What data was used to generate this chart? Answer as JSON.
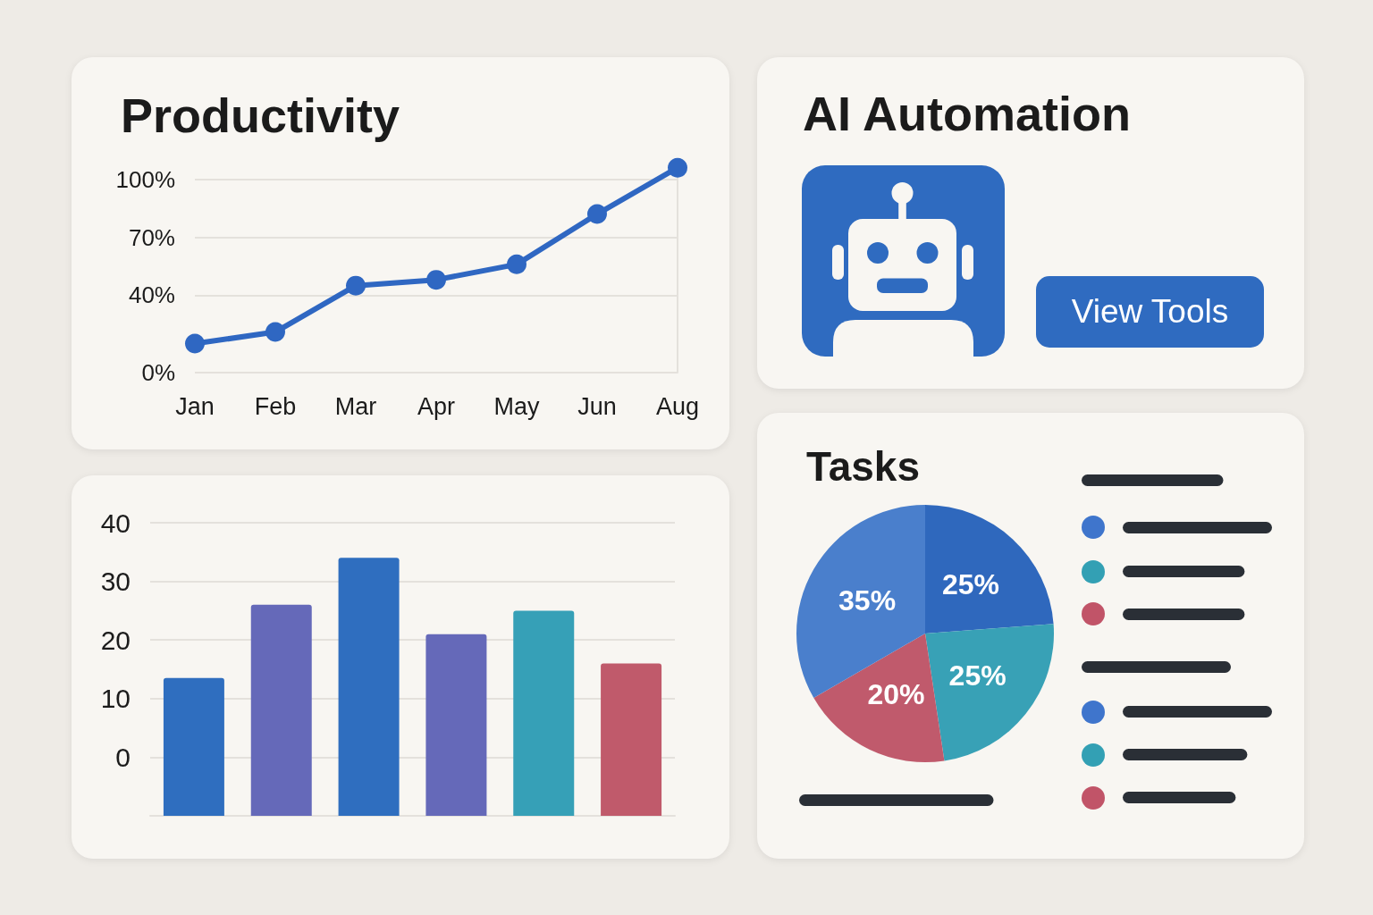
{
  "chart_data": [
    {
      "type": "line",
      "title": "Productivity",
      "categories": [
        "Jan",
        "Feb",
        "Mar",
        "Apr",
        "May",
        "Jun",
        "Aug"
      ],
      "values": [
        15,
        21,
        45,
        48,
        56,
        82,
        106
      ],
      "color": "#2f67c2",
      "ylim": [
        0,
        110
      ],
      "yticks": [
        {
          "value": 0,
          "label": "0%"
        },
        {
          "value": 40,
          "label": "40%"
        },
        {
          "value": 70,
          "label": "70%"
        },
        {
          "value": 100,
          "label": "100%"
        }
      ],
      "grid": "y",
      "marker": "circle"
    },
    {
      "type": "other",
      "title": "AI Automation",
      "annotations": [
        "View Tools"
      ]
    },
    {
      "type": "bar",
      "categories": [
        null,
        null,
        null,
        null,
        null,
        null
      ],
      "values": [
        23.5,
        36,
        44,
        31,
        35,
        26
      ],
      "base": [
        -10,
        -10,
        -10,
        -10,
        -10,
        -10
      ],
      "colors": [
        "#2f6ebf",
        "#6569b9",
        "#2f6ebf",
        "#6569b9",
        "#36a0b7",
        "#c05a6b"
      ],
      "ylim": [
        -10,
        40
      ],
      "yticks": [
        0,
        10,
        20,
        30,
        40
      ],
      "grid": "y"
    },
    {
      "type": "pie",
      "title": "Tasks",
      "categories": [
        null,
        null,
        null,
        null
      ],
      "values": [
        25,
        25,
        20,
        35
      ],
      "colors": [
        "#2f68bd",
        "#38a1b6",
        "#c05a6c",
        "#4a7fcc"
      ],
      "value_labels": [
        "25%",
        "25%",
        "20%",
        "35%"
      ]
    }
  ]
}
